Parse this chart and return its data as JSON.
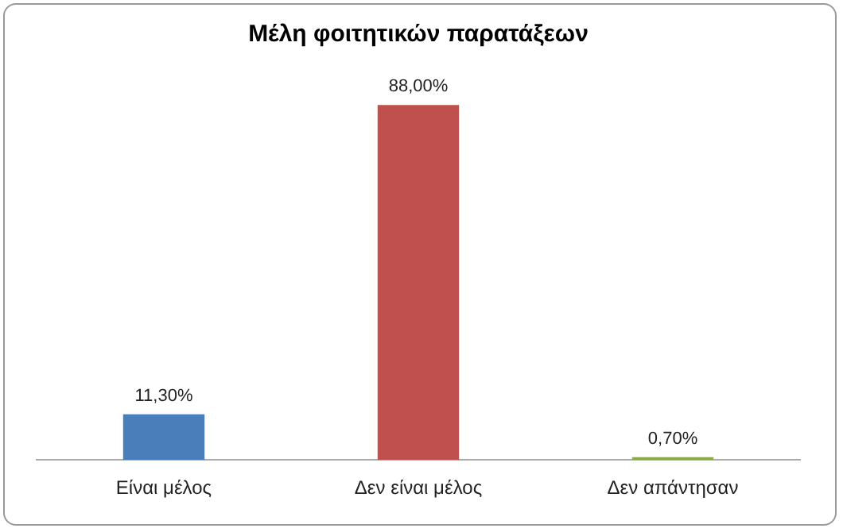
{
  "chart_data": {
    "type": "bar",
    "title": "Μέλη φοιτητικών παρατάξεων",
    "categories": [
      "Είναι μέλος",
      "Δεν είναι μέλος",
      "Δεν απάντησαν"
    ],
    "values": [
      11.3,
      88,
      0.7
    ],
    "colors": [
      "#4a7ebb",
      "#c0504d",
      "#8aaa48"
    ],
    "value_labels": [
      "11,30%",
      "88,00%",
      "0,70%"
    ],
    "tick_labels": "x",
    "grid": false,
    "legend": false
  }
}
